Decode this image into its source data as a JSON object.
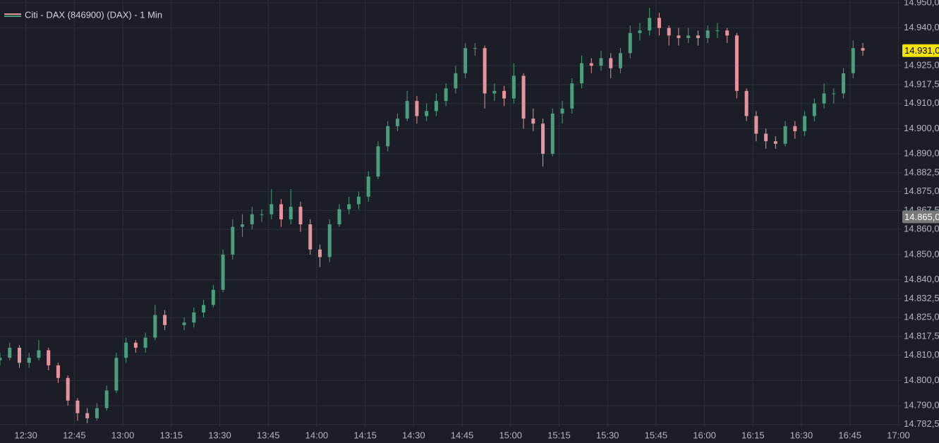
{
  "chart_data": {
    "type": "candlestick",
    "title": "Citi - DAX (846900) (DAX) - 1 Min",
    "up_color": "#4a9e7f",
    "down_color": "#e5939f",
    "grid": true,
    "x": [
      "12:22",
      "12:25",
      "12:28",
      "12:31",
      "12:34",
      "12:37",
      "12:40",
      "12:43",
      "12:46",
      "12:49",
      "12:52",
      "12:55",
      "12:58",
      "13:01",
      "13:04",
      "13:07",
      "13:10",
      "13:13",
      "13:19",
      "13:22",
      "13:25",
      "13:28",
      "13:31",
      "13:34",
      "13:37",
      "13:40",
      "13:43",
      "13:46",
      "13:49",
      "13:52",
      "13:55",
      "13:58",
      "14:01",
      "14:04",
      "14:07",
      "14:10",
      "14:13",
      "14:16",
      "14:19",
      "14:22",
      "14:25",
      "14:28",
      "14:31",
      "14:34",
      "14:37",
      "14:40",
      "14:43",
      "14:46",
      "14:49",
      "14:52",
      "14:55",
      "14:58",
      "15:01",
      "15:04",
      "15:07",
      "15:10",
      "15:13",
      "15:16",
      "15:19",
      "15:22",
      "15:25",
      "15:28",
      "15:31",
      "15:34",
      "15:37",
      "15:40",
      "15:43",
      "15:46",
      "15:49",
      "15:52",
      "15:55",
      "15:58",
      "16:01",
      "16:04",
      "16:07",
      "16:10",
      "16:13",
      "16:16",
      "16:19",
      "16:22",
      "16:25",
      "16:28",
      "16:31",
      "16:34",
      "16:37",
      "16:40",
      "16:43",
      "16:46",
      "16:49"
    ],
    "open": [
      14808,
      14809,
      14813,
      14807,
      14809,
      14812,
      14806,
      14801,
      14792,
      14787,
      14785,
      14789,
      14796,
      14809,
      14815,
      14813,
      14817,
      14826,
      14822,
      14823,
      14827,
      14830,
      14836,
      14850,
      14861,
      14862,
      14866,
      14866,
      14870,
      14864,
      14869,
      14862,
      14852,
      14849,
      14862,
      14868,
      14870,
      14873,
      14881,
      14893,
      14901,
      14904,
      14911,
      14905,
      14907,
      14911,
      14916,
      14922,
      14932,
      14932,
      14914,
      14915,
      14912,
      14921,
      14904,
      14902,
      14890,
      14906,
      14908,
      14918,
      14926,
      14925,
      14928,
      14924,
      14930,
      14938,
      14939,
      14944,
      14940,
      14937,
      14936,
      14937,
      14936,
      14939,
      14939,
      14937,
      14915,
      14905,
      14898,
      14895,
      14894,
      14901,
      14899,
      14905,
      14910,
      14914,
      14914,
      14922,
      14932
    ],
    "high": [
      14811,
      14815,
      14814,
      14811,
      14816,
      14813,
      14807,
      14802,
      14793,
      14789,
      14791,
      14798,
      14811,
      14817,
      14816,
      14819,
      14830,
      14828,
      14825,
      14829,
      14832,
      14838,
      14852,
      14864,
      14866,
      14869,
      14868,
      14876,
      14872,
      14876,
      14871,
      14864,
      14854,
      14864,
      14870,
      14873,
      14875,
      14883,
      14895,
      14903,
      14906,
      14915,
      14913,
      14910,
      14914,
      14918,
      14925,
      14934,
      14934,
      14933,
      14918,
      14917,
      14926,
      14922,
      14908,
      14904,
      14908,
      14911,
      14920,
      14929,
      14928,
      14931,
      14930,
      14932,
      14941,
      14942,
      14948,
      14946,
      14941,
      14940,
      14940,
      14939,
      14941,
      14942,
      14940,
      14938,
      14916,
      14907,
      14900,
      14897,
      14903,
      14903,
      14907,
      14912,
      14918,
      14916,
      14924,
      14935,
      14934
    ],
    "low": [
      14806,
      14808,
      14805,
      14805,
      14808,
      14804,
      14799,
      14790,
      14784,
      14783,
      14784,
      14788,
      14795,
      14807,
      14811,
      14811,
      14816,
      14820,
      14820,
      14821,
      14825,
      14829,
      14835,
      14848,
      14857,
      14860,
      14863,
      14864,
      14861,
      14862,
      14859,
      14850,
      14845,
      14847,
      14861,
      14866,
      14868,
      14871,
      14880,
      14891,
      14899,
      14903,
      14902,
      14903,
      14905,
      14909,
      14914,
      14920,
      14929,
      14908,
      14911,
      14909,
      14910,
      14900,
      14899,
      14885,
      14889,
      14902,
      14906,
      14916,
      14922,
      14923,
      14920,
      14922,
      14928,
      14935,
      14937,
      14937,
      14933,
      14933,
      14934,
      14933,
      14934,
      14936,
      14934,
      14912,
      14903,
      14895,
      14892,
      14892,
      14893,
      14896,
      14897,
      14903,
      14908,
      14910,
      14912,
      14920,
      14929
    ],
    "close": [
      14809,
      14813,
      14807,
      14809,
      14812,
      14806,
      14801,
      14792,
      14787,
      14785,
      14789,
      14796,
      14809,
      14815,
      14813,
      14817,
      14826,
      14822,
      14823,
      14827,
      14830,
      14836,
      14850,
      14861,
      14862,
      14866,
      14866,
      14870,
      14864,
      14869,
      14862,
      14852,
      14849,
      14862,
      14868,
      14870,
      14873,
      14881,
      14893,
      14901,
      14904,
      14911,
      14905,
      14907,
      14911,
      14916,
      14922,
      14932,
      14932,
      14914,
      14915,
      14912,
      14921,
      14904,
      14902,
      14890,
      14906,
      14908,
      14918,
      14926,
      14925,
      14928,
      14924,
      14930,
      14938,
      14939,
      14944,
      14940,
      14937,
      14936,
      14937,
      14936,
      14939,
      14939,
      14937,
      14915,
      14905,
      14898,
      14895,
      14894,
      14901,
      14899,
      14905,
      14910,
      14914,
      14914,
      14922,
      14932,
      14931
    ],
    "xlim": [
      "12:22",
      "17:01"
    ],
    "xticks": [
      "12:30",
      "12:45",
      "13:00",
      "13:15",
      "13:30",
      "13:45",
      "14:00",
      "14:15",
      "14:30",
      "14:45",
      "15:00",
      "15:15",
      "15:30",
      "15:45",
      "16:00",
      "16:15",
      "16:30",
      "16:45",
      "17:00"
    ],
    "ylim": [
      14781.6,
      14951.1
    ],
    "yticks": [
      {
        "value": 14950,
        "label": "14.950,0"
      },
      {
        "value": 14940,
        "label": "14.940,0"
      },
      {
        "value": 14925,
        "label": "14.925,0"
      },
      {
        "value": 14917.5,
        "label": "14.917,5"
      },
      {
        "value": 14910,
        "label": "14.910,0"
      },
      {
        "value": 14900,
        "label": "14.900,0"
      },
      {
        "value": 14890,
        "label": "14.890,0"
      },
      {
        "value": 14882.5,
        "label": "14.882,5"
      },
      {
        "value": 14875,
        "label": "14.875,0"
      },
      {
        "value": 14867.5,
        "label": "14.867,5"
      },
      {
        "value": 14860,
        "label": "14.860,0"
      },
      {
        "value": 14850,
        "label": "14.850,0"
      },
      {
        "value": 14840,
        "label": "14.840,0"
      },
      {
        "value": 14832.5,
        "label": "14.832,5"
      },
      {
        "value": 14825,
        "label": "14.825,0"
      },
      {
        "value": 14817.5,
        "label": "14.817,5"
      },
      {
        "value": 14810,
        "label": "14.810,0"
      },
      {
        "value": 14800,
        "label": "14.800,0"
      },
      {
        "value": 14790,
        "label": "14.790,0"
      },
      {
        "value": 14782.5,
        "label": "14.782,5"
      }
    ],
    "price_labels": [
      {
        "value": 14931,
        "label": "14.931,0",
        "color": "#f5e400"
      },
      {
        "value": 14865,
        "label": "14.865,0",
        "color": "#7a7a7a"
      }
    ]
  }
}
